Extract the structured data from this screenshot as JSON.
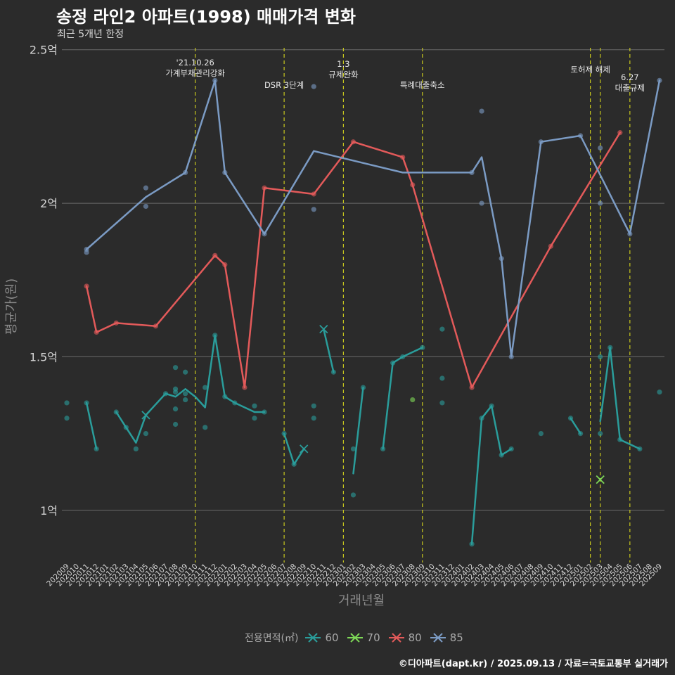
{
  "title": "송정 라인2 아파트(1998) 매매가격 변화",
  "subtitle": "최근 5개년 한정",
  "caption": "©디아파트(dapt.kr) / 2025.09.13 / 자료=국토교통부 실거래가",
  "legend_title": "전용면적(㎡)",
  "chart_data": {
    "type": "line",
    "xlabel": "거래년월",
    "ylabel": "평균가(원)",
    "ylim": [
      0.83,
      2.52
    ],
    "grid": true,
    "legend_position": "bottom",
    "yticks": [
      {
        "value": 1.0,
        "label": "1억"
      },
      {
        "value": 1.5,
        "label": "1.5억"
      },
      {
        "value": 2.0,
        "label": "2억"
      },
      {
        "value": 2.5,
        "label": "2.5억"
      }
    ],
    "months": [
      "202009",
      "202010",
      "202011",
      "202012",
      "202101",
      "202102",
      "202103",
      "202104",
      "202105",
      "202106",
      "202107",
      "202108",
      "202109",
      "202110",
      "202111",
      "202112",
      "202201",
      "202202",
      "202203",
      "202204",
      "202205",
      "202206",
      "202207",
      "202208",
      "202209",
      "202210",
      "202211",
      "202212",
      "202301",
      "202302",
      "202303",
      "202304",
      "202305",
      "202306",
      "202307",
      "202308",
      "202309",
      "202310",
      "202311",
      "202312",
      "202401",
      "202402",
      "202403",
      "202404",
      "202405",
      "202406",
      "202407",
      "202408",
      "202409",
      "202410",
      "202411",
      "202412",
      "202501",
      "202502",
      "202503",
      "202504",
      "202505",
      "202506",
      "202507",
      "202508",
      "202509"
    ],
    "annotations": [
      {
        "month": "202110",
        "label": "'21.10.26\n가계부채관리강화"
      },
      {
        "month": "202207",
        "label": "DSR 3단계"
      },
      {
        "month": "202301",
        "label": "1.3\n규제완화"
      },
      {
        "month": "202309",
        "label": "특례대출축소"
      },
      {
        "month": "202502",
        "label": ""
      },
      {
        "month": "202503",
        "label": "토허제 해제"
      },
      {
        "month": "202506",
        "label": "6.27\n대출규제"
      }
    ],
    "series": [
      {
        "name": "60",
        "color": "#2a9d9b",
        "line": [
          [
            [
              "202011",
              1.35
            ],
            [
              "202012",
              1.2
            ]
          ],
          [
            [
              "202102",
              1.32
            ],
            [
              "202103",
              1.27
            ],
            [
              "202104",
              1.22
            ],
            [
              "202105",
              1.31
            ],
            [
              "202107",
              1.38
            ],
            [
              "202108",
              1.37
            ],
            [
              "202109",
              1.395
            ],
            [
              "202110",
              1.37
            ],
            [
              "202111",
              1.335
            ],
            [
              "202112",
              1.57
            ],
            [
              "202201",
              1.37
            ],
            [
              "202202",
              1.35
            ],
            [
              "202204",
              1.32
            ],
            [
              "202205",
              1.32
            ]
          ],
          [
            [
              "202207",
              1.25
            ],
            [
              "202208",
              1.15
            ],
            [
              "202209",
              1.2
            ]
          ],
          [
            [
              "202211",
              1.59
            ],
            [
              "202212",
              1.45
            ]
          ],
          [
            [
              "202302",
              1.12
            ],
            [
              "202303",
              1.4
            ]
          ],
          [
            [
              "202305",
              1.2
            ],
            [
              "202306",
              1.48
            ],
            [
              "202307",
              1.5
            ],
            [
              "202309",
              1.53
            ]
          ],
          [
            [
              "202402",
              0.89
            ],
            [
              "202403",
              1.3
            ],
            [
              "202404",
              1.34
            ],
            [
              "202405",
              1.18
            ],
            [
              "202406",
              1.2
            ]
          ],
          [
            [
              "202412",
              1.3
            ],
            [
              "202501",
              1.25
            ]
          ],
          [
            [
              "202503",
              1.29
            ],
            [
              "202504",
              1.53
            ],
            [
              "202505",
              1.23
            ],
            [
              "202507",
              1.2
            ]
          ]
        ],
        "points": [
          [
            "202009",
            1.35
          ],
          [
            "202009",
            1.3
          ],
          [
            "202011",
            1.35
          ],
          [
            "202012",
            1.2
          ],
          [
            "202102",
            1.32
          ],
          [
            "202103",
            1.27
          ],
          [
            "202104",
            1.2
          ],
          [
            "202105",
            1.25
          ],
          [
            "202107",
            1.38
          ],
          [
            "202108",
            1.465
          ],
          [
            "202108",
            1.395
          ],
          [
            "202108",
            1.385
          ],
          [
            "202108",
            1.33
          ],
          [
            "202108",
            1.28
          ],
          [
            "202109",
            1.45
          ],
          [
            "202109",
            1.36
          ],
          [
            "202109",
            1.38
          ],
          [
            "202111",
            1.4
          ],
          [
            "202111",
            1.27
          ],
          [
            "202112",
            1.57
          ],
          [
            "202201",
            1.37
          ],
          [
            "202202",
            1.35
          ],
          [
            "202204",
            1.34
          ],
          [
            "202204",
            1.3
          ],
          [
            "202205",
            1.32
          ],
          [
            "202207",
            1.25
          ],
          [
            "202208",
            1.15
          ],
          [
            "202210",
            1.34
          ],
          [
            "202210",
            1.3
          ],
          [
            "202212",
            1.45
          ],
          [
            "202302",
            1.2
          ],
          [
            "202302",
            1.05
          ],
          [
            "202303",
            1.4
          ],
          [
            "202305",
            1.2
          ],
          [
            "202306",
            1.48
          ],
          [
            "202307",
            1.5
          ],
          [
            "202309",
            1.53
          ],
          [
            "202311",
            1.59
          ],
          [
            "202311",
            1.43
          ],
          [
            "202311",
            1.35
          ],
          [
            "202402",
            0.89
          ],
          [
            "202403",
            1.3
          ],
          [
            "202404",
            1.34
          ],
          [
            "202405",
            1.18
          ],
          [
            "202406",
            1.2
          ],
          [
            "202409",
            1.25
          ],
          [
            "202412",
            1.3
          ],
          [
            "202501",
            1.25
          ],
          [
            "202503",
            1.5
          ],
          [
            "202503",
            1.25
          ],
          [
            "202504",
            1.53
          ],
          [
            "202505",
            1.23
          ],
          [
            "202507",
            1.2
          ],
          [
            "202509",
            1.385
          ]
        ],
        "crosses": [
          [
            "202105",
            1.31
          ],
          [
            "202209",
            1.2
          ],
          [
            "202211",
            1.59
          ]
        ]
      },
      {
        "name": "70",
        "color": "#7ed957",
        "line": [],
        "points": [
          [
            "202308",
            1.36
          ]
        ],
        "crosses": [
          [
            "202503",
            1.1
          ]
        ]
      },
      {
        "name": "80",
        "color": "#e35a5a",
        "line": [
          [
            [
              "202011",
              1.73
            ],
            [
              "202012",
              1.58
            ],
            [
              "202102",
              1.61
            ],
            [
              "202106",
              1.6
            ],
            [
              "202112",
              1.83
            ],
            [
              "202201",
              1.8
            ],
            [
              "202203",
              1.4
            ],
            [
              "202205",
              2.05
            ],
            [
              "202210",
              2.03
            ],
            [
              "202302",
              2.2
            ],
            [
              "202307",
              2.15
            ],
            [
              "202308",
              2.06
            ],
            [
              "202402",
              1.4
            ],
            [
              "202410",
              1.86
            ],
            [
              "202505",
              2.23
            ]
          ]
        ],
        "points": [
          [
            "202011",
            1.73
          ],
          [
            "202012",
            1.58
          ],
          [
            "202102",
            1.61
          ],
          [
            "202106",
            1.6
          ],
          [
            "202112",
            1.83
          ],
          [
            "202201",
            1.8
          ],
          [
            "202203",
            1.4
          ],
          [
            "202205",
            2.05
          ],
          [
            "202210",
            2.03
          ],
          [
            "202302",
            2.2
          ],
          [
            "202307",
            2.15
          ],
          [
            "202308",
            2.06
          ],
          [
            "202402",
            1.4
          ],
          [
            "202410",
            1.86
          ],
          [
            "202505",
            2.23
          ]
        ],
        "crosses": []
      },
      {
        "name": "85",
        "color": "#7b9bc4",
        "line": [
          [
            [
              "202011",
              1.85
            ],
            [
              "202105",
              2.02
            ],
            [
              "202109",
              2.1
            ],
            [
              "202112",
              2.4
            ],
            [
              "202201",
              2.1
            ],
            [
              "202205",
              1.9
            ],
            [
              "202210",
              2.17
            ],
            [
              "202307",
              2.1
            ],
            [
              "202402",
              2.1
            ],
            [
              "202403",
              2.15
            ],
            [
              "202405",
              1.82
            ],
            [
              "202406",
              1.5
            ],
            [
              "202409",
              2.2
            ],
            [
              "202501",
              2.22
            ],
            [
              "202506",
              1.9
            ],
            [
              "202509",
              2.4
            ]
          ]
        ],
        "points": [
          [
            "202011",
            1.85
          ],
          [
            "202011",
            1.84
          ],
          [
            "202105",
            2.05
          ],
          [
            "202105",
            1.99
          ],
          [
            "202109",
            2.1
          ],
          [
            "202112",
            2.4
          ],
          [
            "202201",
            2.1
          ],
          [
            "202205",
            1.9
          ],
          [
            "202210",
            2.38
          ],
          [
            "202210",
            1.98
          ],
          [
            "202402",
            2.1
          ],
          [
            "202403",
            2.3
          ],
          [
            "202403",
            2.0
          ],
          [
            "202405",
            1.82
          ],
          [
            "202406",
            1.5
          ],
          [
            "202409",
            2.2
          ],
          [
            "202501",
            2.22
          ],
          [
            "202503",
            2.18
          ],
          [
            "202503",
            2.0
          ],
          [
            "202506",
            1.9
          ],
          [
            "202509",
            2.4
          ]
        ],
        "crosses": []
      }
    ]
  }
}
